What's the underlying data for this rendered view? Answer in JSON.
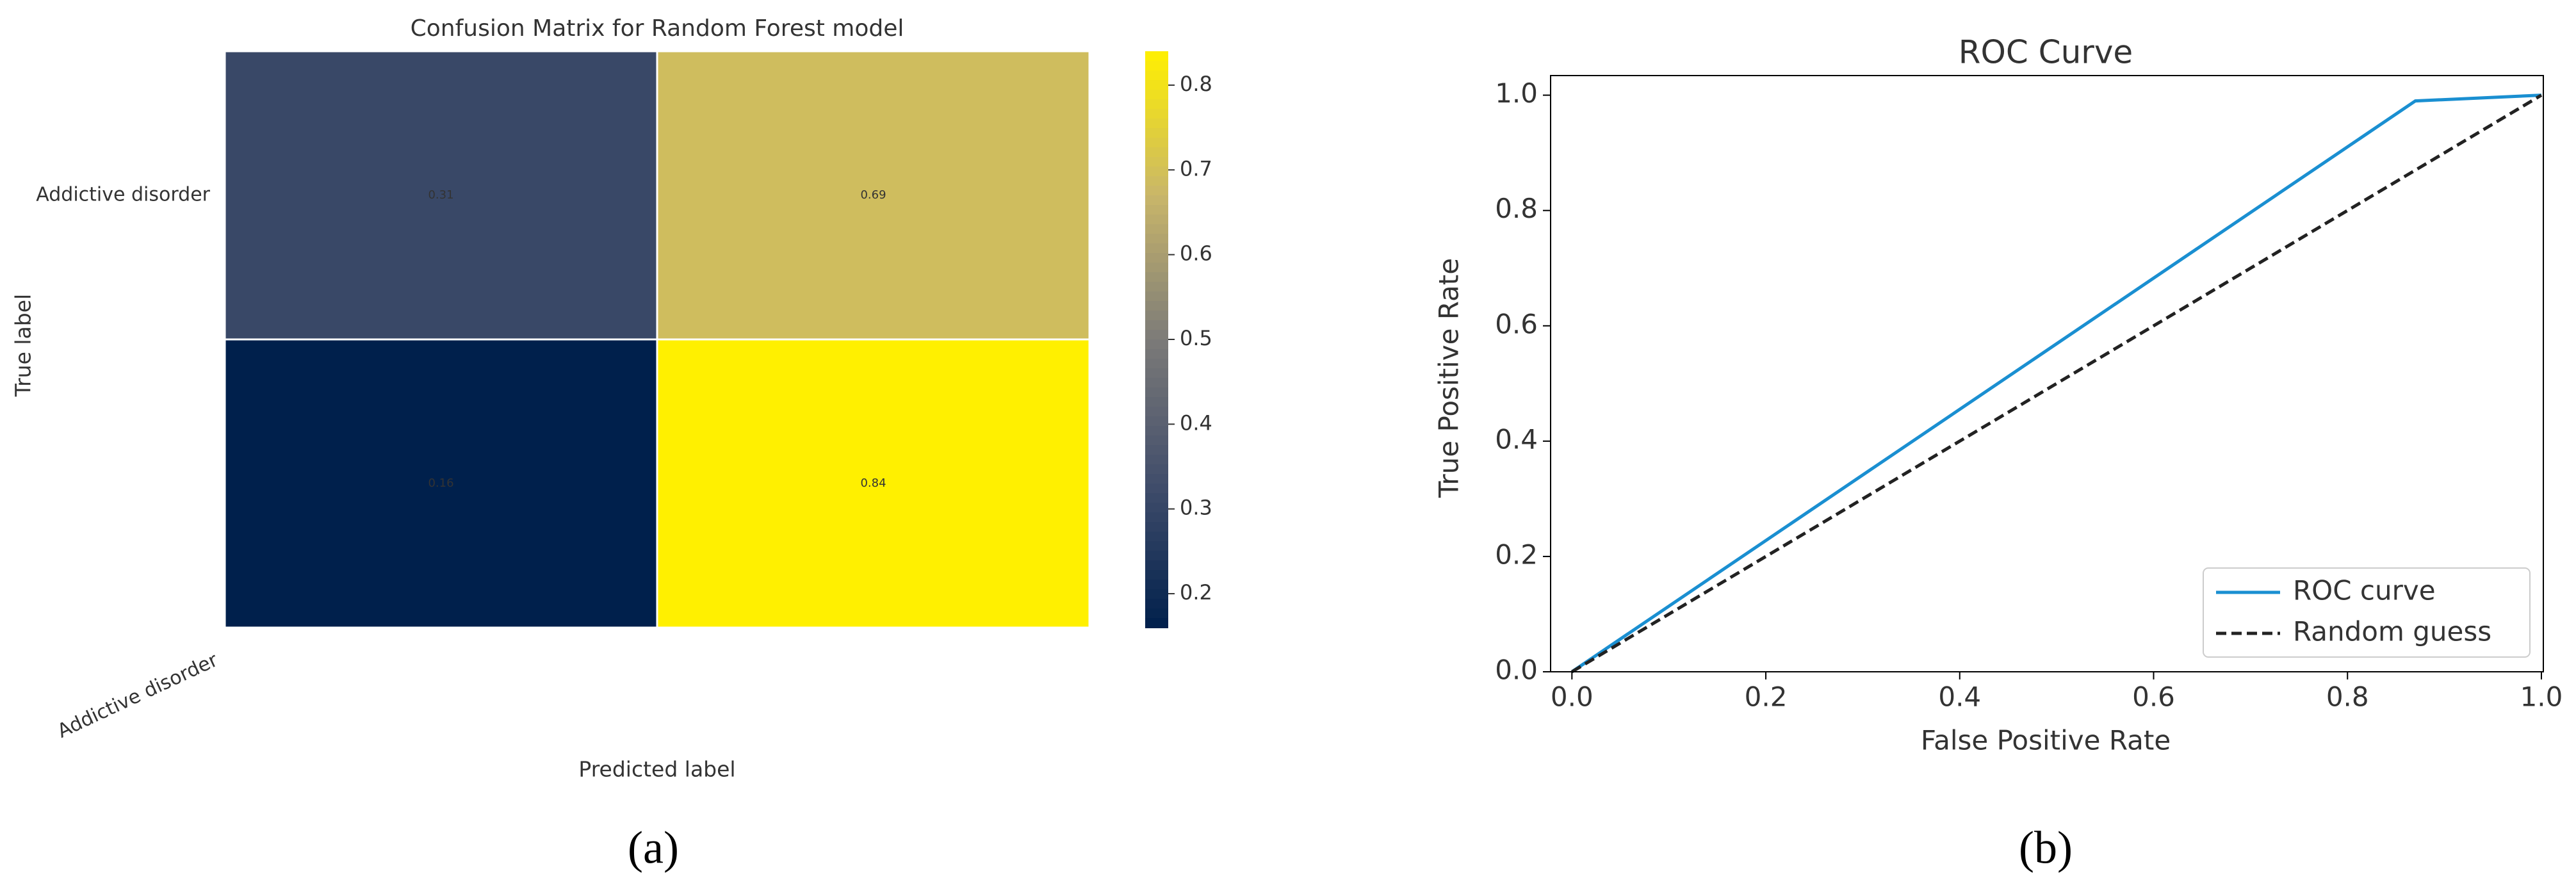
{
  "chart_data": [
    {
      "type": "heatmap",
      "title": "Confusion Matrix for Random Forest model",
      "x_label": "Predicted label",
      "y_label": "True label",
      "rows": [
        "Addictive disorder",
        null
      ],
      "columns": [
        "Addictive disorder",
        null
      ],
      "values": [
        [
          0.31,
          0.69
        ],
        [
          0.16,
          0.84
        ]
      ],
      "colormap": [
        "#00204c",
        "#414d6b",
        "#7c7b78",
        "#c9b66a",
        "#fff000"
      ],
      "clim": [
        0.16,
        0.84
      ],
      "cticks": [
        0.2,
        0.3,
        0.4,
        0.5,
        0.6,
        0.7,
        0.8
      ],
      "caption": "(a)"
    },
    {
      "type": "line",
      "title": "ROC Curve",
      "x_label": "False Positive Rate",
      "y_label": "True Positive Rate",
      "series": [
        {
          "name": "ROC curve",
          "color": "#1a8fd1",
          "linestyle": "solid",
          "x": [
            0,
            0.87,
            1
          ],
          "values": [
            0,
            0.99,
            1
          ]
        },
        {
          "name": "Random guess",
          "color": "#222222",
          "linestyle": "dashed",
          "x": [
            0,
            1
          ],
          "values": [
            0,
            1
          ]
        }
      ],
      "xlim": [
        -0.022,
        1.002
      ],
      "ylim": [
        0,
        1.034
      ],
      "xticks": [
        {
          "value": 0,
          "label": "0.0"
        },
        0.2,
        0.4,
        0.6,
        0.8,
        {
          "value": 1,
          "label": "1.0"
        }
      ],
      "yticks": [
        {
          "value": 0,
          "label": "0.0"
        },
        0.2,
        0.4,
        0.6,
        0.8,
        {
          "value": 1,
          "label": "1.0"
        }
      ],
      "legend": "lower right",
      "caption": "(b)"
    }
  ]
}
